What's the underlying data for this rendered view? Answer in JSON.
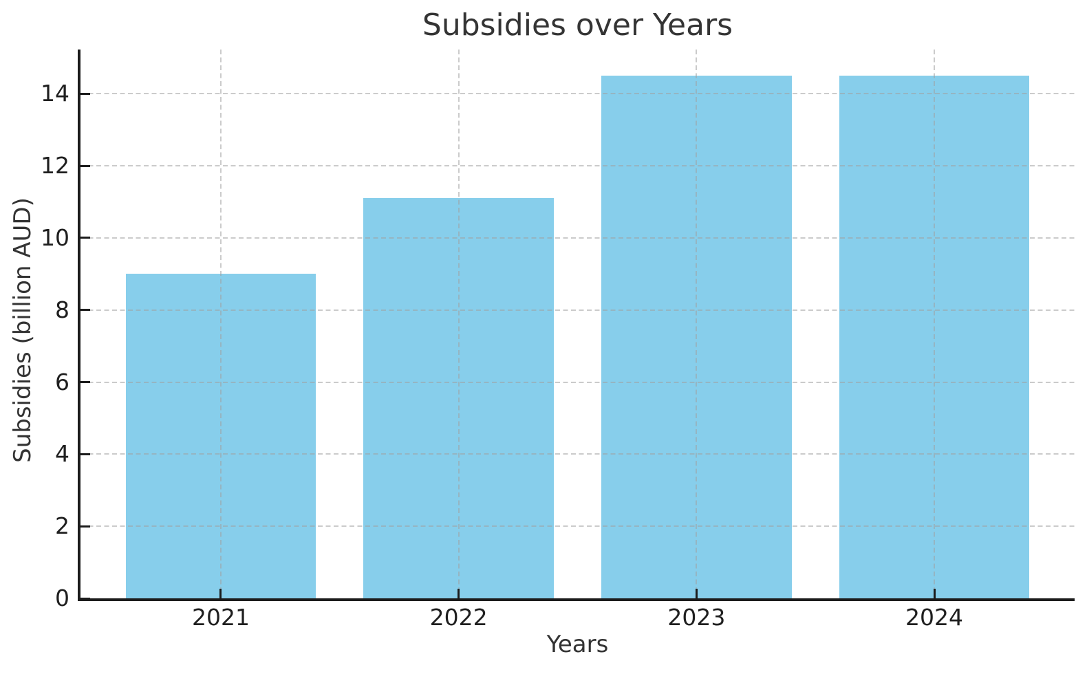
{
  "figure": {
    "background": "#ffffff"
  },
  "chart_data": {
    "type": "bar",
    "title": "Subsidies over Years",
    "xlabel": "Years",
    "ylabel": "Subsidies (billion AUD)",
    "categories": [
      "2021",
      "2022",
      "2023",
      "2024"
    ],
    "values": [
      9.0,
      11.1,
      14.5,
      14.5
    ],
    "ylim": [
      0,
      15.225
    ],
    "yticks": [
      0,
      2,
      4,
      6,
      8,
      10,
      12,
      14
    ],
    "xlim": [
      -0.59,
      3.59
    ],
    "bar_width": 0.8,
    "bar_color": "#87CEEB",
    "grid": true,
    "grid_style": "dashed",
    "grid_color": "rgba(160,160,160,0.55)",
    "axis_color": "#1c1c1c",
    "tick_color": "#1c1c1c",
    "text_color": "#333333",
    "legend_position": "none"
  }
}
